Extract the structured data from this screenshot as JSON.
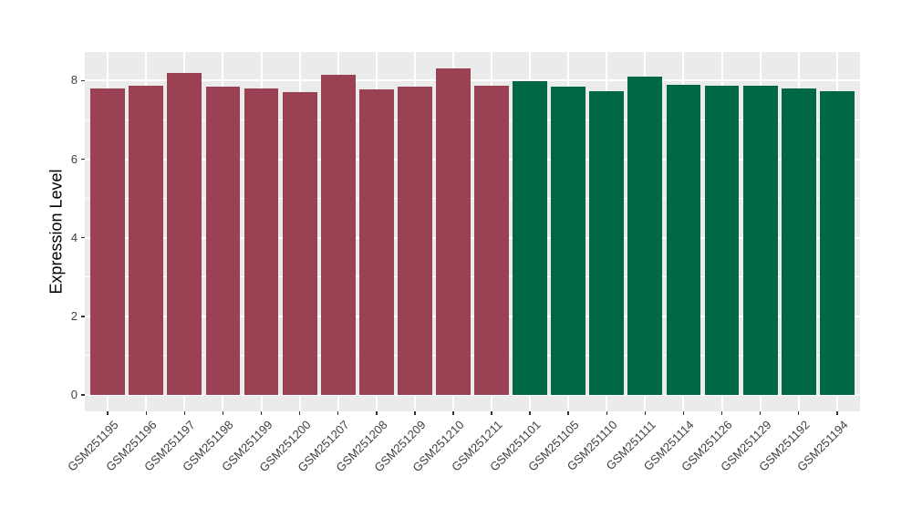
{
  "figure": {
    "background": "#FFFFFF",
    "panel_background": "#EBEBEB",
    "gridline_color": "#FFFFFF",
    "axis_text_color": "#404040",
    "tick_mark_color": "#333333"
  },
  "chart_data": {
    "type": "bar",
    "title": "",
    "xlabel": "",
    "ylabel": "Expression Level",
    "yticks": [
      0,
      2,
      4,
      6,
      8
    ],
    "ylim": [
      -0.42,
      8.73
    ],
    "grid": {
      "major": true,
      "minor_y": true,
      "minor_x": false
    },
    "legend": "none",
    "group_colors": {
      "maroon": "#9A4254",
      "green": "#006747"
    },
    "bars": [
      {
        "label": "GSM251195",
        "value": 7.79,
        "group": "maroon"
      },
      {
        "label": "GSM251196",
        "value": 7.88,
        "group": "maroon"
      },
      {
        "label": "GSM251197",
        "value": 8.19,
        "group": "maroon"
      },
      {
        "label": "GSM251198",
        "value": 7.85,
        "group": "maroon"
      },
      {
        "label": "GSM251199",
        "value": 7.79,
        "group": "maroon"
      },
      {
        "label": "GSM251200",
        "value": 7.71,
        "group": "maroon"
      },
      {
        "label": "GSM251207",
        "value": 8.14,
        "group": "maroon"
      },
      {
        "label": "GSM251208",
        "value": 7.78,
        "group": "maroon"
      },
      {
        "label": "GSM251209",
        "value": 7.84,
        "group": "maroon"
      },
      {
        "label": "GSM251210",
        "value": 8.31,
        "group": "maroon"
      },
      {
        "label": "GSM251211",
        "value": 7.87,
        "group": "maroon"
      },
      {
        "label": "GSM251101",
        "value": 7.98,
        "group": "green"
      },
      {
        "label": "GSM251105",
        "value": 7.85,
        "group": "green"
      },
      {
        "label": "GSM251110",
        "value": 7.74,
        "group": "green"
      },
      {
        "label": "GSM251111",
        "value": 8.1,
        "group": "green"
      },
      {
        "label": "GSM251114",
        "value": 7.9,
        "group": "green"
      },
      {
        "label": "GSM251126",
        "value": 7.86,
        "group": "green"
      },
      {
        "label": "GSM251129",
        "value": 7.87,
        "group": "green"
      },
      {
        "label": "GSM251192",
        "value": 7.81,
        "group": "green"
      },
      {
        "label": "GSM251194",
        "value": 7.72,
        "group": "green"
      }
    ]
  }
}
